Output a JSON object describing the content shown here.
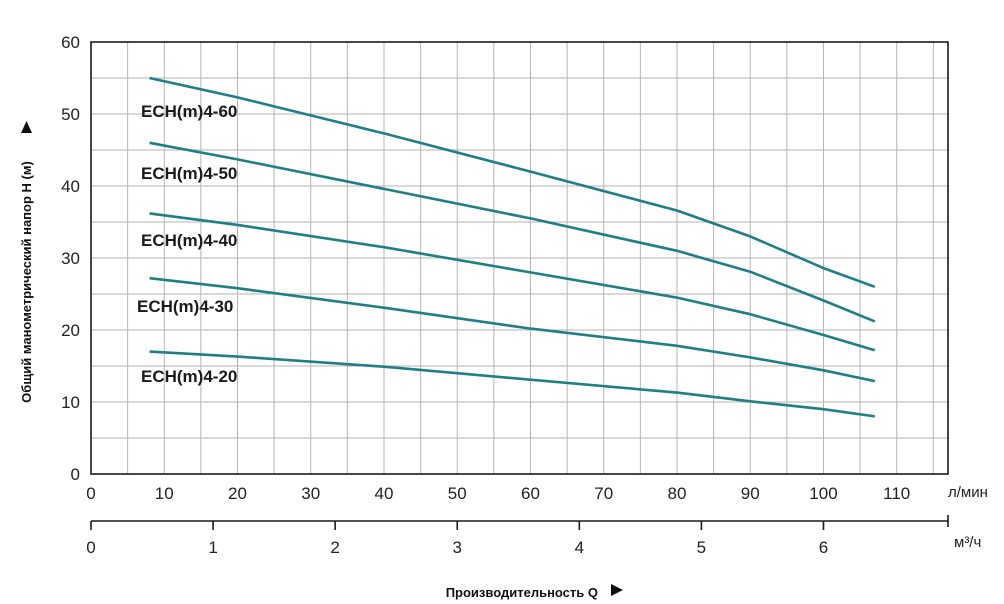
{
  "chart_data": {
    "type": "line",
    "ylabel": "Общий манометрический напор H (м)",
    "xlabel": "Производительность Q",
    "x_unit": "л/мин",
    "x2_unit": "м³/ч",
    "xlim": [
      0,
      117
    ],
    "ylim": [
      0,
      60
    ],
    "xticks": [
      0,
      10,
      20,
      30,
      40,
      50,
      60,
      70,
      80,
      90,
      100,
      110
    ],
    "yticks": [
      0,
      10,
      20,
      30,
      40,
      50,
      60
    ],
    "x2ticks": [
      0,
      1,
      2,
      3,
      4,
      5,
      6
    ],
    "grid": true,
    "line_color": "#1f7f86",
    "series": [
      {
        "name": "ECH(m)4-60",
        "x": [
          8,
          20,
          40,
          60,
          80,
          90,
          100,
          107
        ],
        "y": [
          55,
          52.3,
          47.3,
          42,
          36.6,
          33,
          28.6,
          26
        ]
      },
      {
        "name": "ECH(m)4-50",
        "x": [
          8,
          20,
          40,
          60,
          80,
          90,
          100,
          107
        ],
        "y": [
          46,
          43.7,
          39.6,
          35.5,
          31,
          28.1,
          24.1,
          21.2
        ]
      },
      {
        "name": "ECH(m)4-40",
        "x": [
          8,
          20,
          40,
          60,
          80,
          90,
          100,
          107
        ],
        "y": [
          36.2,
          34.6,
          31.5,
          28,
          24.5,
          22.2,
          19.3,
          17.2
        ]
      },
      {
        "name": "ECH(m)4-30",
        "x": [
          8,
          20,
          40,
          60,
          80,
          90,
          100,
          107
        ],
        "y": [
          27.2,
          25.8,
          23.1,
          20.2,
          17.8,
          16.2,
          14.4,
          12.9
        ]
      },
      {
        "name": "ECH(m)4-20",
        "x": [
          8,
          20,
          40,
          60,
          80,
          90,
          100,
          107
        ],
        "y": [
          17,
          16.3,
          14.9,
          13.1,
          11.3,
          10.1,
          9,
          8
        ]
      }
    ]
  }
}
